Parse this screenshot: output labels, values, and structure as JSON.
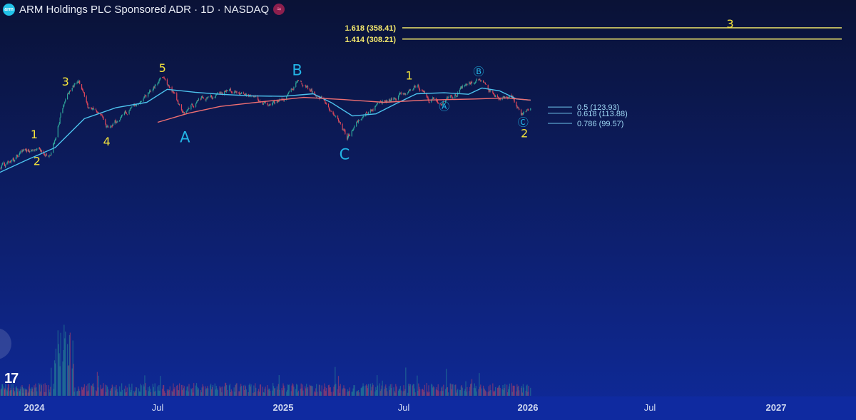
{
  "header": {
    "logo_text": "arm",
    "title": "ARM Holdings PLC Sponsored ADR · 1D · NASDAQ",
    "badge": "≈"
  },
  "branding": {
    "logo_text": "17"
  },
  "colors": {
    "background_top": "#0a1236",
    "background_bottom": "#0f2a9a",
    "wave_label_yellow": "#f5e53c",
    "wave_label_cyan": "#23b4e6",
    "fib_upper": "#f2e86b",
    "fib_lower": "#6fc3ea",
    "ma_fast": "#4dc3ee",
    "ma_slow": "#ef6f72",
    "candle_up": "#2fa59a",
    "candle_down": "#e0475a"
  },
  "chart_data": {
    "type": "candlestick",
    "x_axis": {
      "ticks": [
        "2024",
        "Jul",
        "2025",
        "Jul",
        "2026",
        "Jul",
        "2027"
      ],
      "range": [
        "2023-10-01",
        "2027-06-01"
      ]
    },
    "y_axis": {
      "scale": "log",
      "range": [
        50,
        400
      ]
    },
    "price_path": [
      [
        "2023-10-02",
        53
      ],
      [
        "2023-11-01",
        58
      ],
      [
        "2023-12-01",
        67
      ],
      [
        "2024-01-08",
        71
      ],
      [
        "2024-01-25",
        63
      ],
      [
        "2024-02-09",
        112
      ],
      [
        "2024-02-20",
        150
      ],
      [
        "2024-03-07",
        177
      ],
      [
        "2024-03-20",
        126
      ],
      [
        "2024-04-05",
        115
      ],
      [
        "2024-04-19",
        92
      ],
      [
        "2024-05-10",
        110
      ],
      [
        "2024-06-01",
        128
      ],
      [
        "2024-06-20",
        155
      ],
      [
        "2024-07-09",
        186
      ],
      [
        "2024-07-25",
        148
      ],
      [
        "2024-08-07",
        110
      ],
      [
        "2024-08-30",
        137
      ],
      [
        "2024-09-20",
        141
      ],
      [
        "2024-10-15",
        158
      ],
      [
        "2024-11-10",
        145
      ],
      [
        "2024-12-10",
        127
      ],
      [
        "2025-01-02",
        135
      ],
      [
        "2025-01-22",
        175
      ],
      [
        "2025-02-07",
        160
      ],
      [
        "2025-02-28",
        140
      ],
      [
        "2025-03-20",
        112
      ],
      [
        "2025-04-07",
        82
      ],
      [
        "2025-04-25",
        103
      ],
      [
        "2025-05-20",
        128
      ],
      [
        "2025-06-20",
        141
      ],
      [
        "2025-07-10",
        158
      ],
      [
        "2025-07-22",
        163
      ],
      [
        "2025-08-08",
        138
      ],
      [
        "2025-08-28",
        133
      ],
      [
        "2025-09-15",
        148
      ],
      [
        "2025-10-07",
        170
      ],
      [
        "2025-10-20",
        180
      ],
      [
        "2025-11-05",
        154
      ],
      [
        "2025-11-20",
        138
      ],
      [
        "2025-12-10",
        140
      ],
      [
        "2025-12-22",
        113
      ],
      [
        "2026-01-05",
        120
      ]
    ],
    "ma_fast_path": [
      [
        "2023-10-02",
        50
      ],
      [
        "2023-12-15",
        61
      ],
      [
        "2024-02-01",
        72
      ],
      [
        "2024-03-15",
        106
      ],
      [
        "2024-05-01",
        123
      ],
      [
        "2024-06-15",
        132
      ],
      [
        "2024-07-15",
        157
      ],
      [
        "2024-08-25",
        151
      ],
      [
        "2024-10-01",
        147
      ],
      [
        "2024-11-15",
        144
      ],
      [
        "2025-01-01",
        143
      ],
      [
        "2025-02-15",
        148
      ],
      [
        "2025-03-15",
        131
      ],
      [
        "2025-04-15",
        110
      ],
      [
        "2025-05-20",
        113
      ],
      [
        "2025-06-20",
        130
      ],
      [
        "2025-07-20",
        148
      ],
      [
        "2025-08-30",
        150
      ],
      [
        "2025-10-05",
        147
      ],
      [
        "2025-10-25",
        160
      ],
      [
        "2025-11-20",
        154
      ],
      [
        "2025-12-15",
        138
      ],
      [
        "2026-01-05",
        136
      ]
    ],
    "ma_slow_path": [
      [
        "2024-07-01",
        101
      ],
      [
        "2024-08-15",
        114
      ],
      [
        "2024-10-01",
        125
      ],
      [
        "2024-12-01",
        133
      ],
      [
        "2025-02-01",
        141
      ],
      [
        "2025-04-01",
        137
      ],
      [
        "2025-06-01",
        132
      ],
      [
        "2025-08-01",
        136
      ],
      [
        "2025-10-15",
        138
      ],
      [
        "2025-12-01",
        140
      ],
      [
        "2026-01-05",
        136
      ]
    ],
    "wave_labels": [
      {
        "text": "1",
        "date": "2024-01-01",
        "price": 86,
        "color": "yellow"
      },
      {
        "text": "2",
        "date": "2024-01-05",
        "price": 60,
        "color": "yellow"
      },
      {
        "text": "3",
        "date": "2024-02-16",
        "price": 174,
        "color": "yellow"
      },
      {
        "text": "4",
        "date": "2024-04-17",
        "price": 78,
        "color": "yellow"
      },
      {
        "text": "5",
        "date": "2024-07-08",
        "price": 209,
        "color": "yellow"
      },
      {
        "text": "A",
        "date": "2024-08-10",
        "price": 83,
        "color": "cyan"
      },
      {
        "text": "B",
        "date": "2025-01-22",
        "price": 204,
        "color": "cyan"
      },
      {
        "text": "C",
        "date": "2025-04-03",
        "price": 66,
        "color": "cyan"
      },
      {
        "text": "1",
        "date": "2025-07-09",
        "price": 189,
        "color": "yellow"
      },
      {
        "text": "Ⓐ",
        "date": "2025-08-30",
        "price": 125,
        "color": "cyan"
      },
      {
        "text": "Ⓑ",
        "date": "2025-10-20",
        "price": 200,
        "color": "cyan"
      },
      {
        "text": "Ⓒ",
        "date": "2025-12-25",
        "price": 101,
        "color": "cyan"
      },
      {
        "text": "2",
        "date": "2025-12-27",
        "price": 87,
        "color": "yellow"
      },
      {
        "text": "3",
        "date": "2026-10-26",
        "price": 378,
        "color": "yellow"
      }
    ],
    "fib_levels": [
      {
        "label": "1.618 (358.41)",
        "price": 358.41,
        "group": "upper"
      },
      {
        "label": "1.414 (308.21)",
        "price": 308.21,
        "group": "upper"
      },
      {
        "label": "0.5 (123.93)",
        "price": 123.93,
        "group": "lower"
      },
      {
        "label": "0.618 (113.88)",
        "price": 113.88,
        "group": "lower"
      },
      {
        "label": "0.786 (99.57)",
        "price": 99.57,
        "group": "lower"
      }
    ]
  }
}
